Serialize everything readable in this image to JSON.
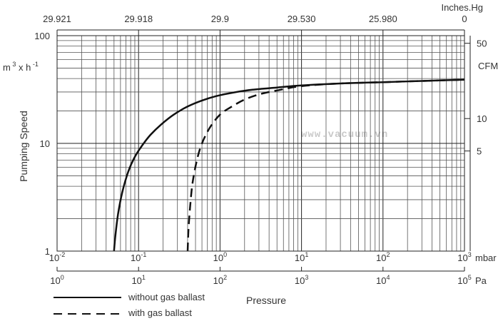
{
  "watermark": "www.vacuum.vn",
  "chart_data": {
    "type": "line",
    "xscale": "log",
    "yscale": "log",
    "xlim": [
      0.01,
      1000
    ],
    "ylim": [
      1,
      100
    ],
    "grid": true,
    "ylabel": "Pumping Speed",
    "yunit": "m 3 x h -1",
    "xlabel": "Pressure",
    "bottom_axis_mbar": {
      "unit": "mbar",
      "ticks": [
        {
          "value": 0.01,
          "base": "10",
          "exp": "-2"
        },
        {
          "value": 0.1,
          "base": "10",
          "exp": "-1"
        },
        {
          "value": 1,
          "base": "10",
          "exp": "0"
        },
        {
          "value": 10,
          "base": "10",
          "exp": "1"
        },
        {
          "value": 100,
          "base": "10",
          "exp": "2"
        },
        {
          "value": 1000,
          "base": "10",
          "exp": "3"
        }
      ]
    },
    "bottom_axis_pa": {
      "unit": "Pa",
      "ticks": [
        {
          "value": 0.01,
          "base": "10",
          "exp": "0"
        },
        {
          "value": 0.1,
          "base": "10",
          "exp": "1"
        },
        {
          "value": 1,
          "base": "10",
          "exp": "2"
        },
        {
          "value": 10,
          "base": "10",
          "exp": "3"
        },
        {
          "value": 100,
          "base": "10",
          "exp": "4"
        },
        {
          "value": 1000,
          "base": "10",
          "exp": "5"
        }
      ]
    },
    "top_axis": {
      "unit": "Inches.Hg",
      "ticks": [
        {
          "value": 0.01,
          "label": "29.921"
        },
        {
          "value": 0.1,
          "label": "29.918"
        },
        {
          "value": 1,
          "label": "29.9"
        },
        {
          "value": 10,
          "label": "29.530"
        },
        {
          "value": 100,
          "label": "25.980"
        },
        {
          "value": 1000,
          "label": "0"
        }
      ]
    },
    "left_axis": {
      "ticks": [
        {
          "value": 1,
          "label": "1"
        },
        {
          "value": 10,
          "label": "10"
        },
        {
          "value": 100,
          "label": "100"
        }
      ]
    },
    "right_axis": {
      "unit": "CFM",
      "ticks": [
        {
          "value": 8.5,
          "label": "5"
        },
        {
          "value": 17,
          "label": "10"
        },
        {
          "value": 85,
          "label": "50"
        }
      ]
    },
    "series": [
      {
        "name": "without gas ballast",
        "style": "solid",
        "x": [
          0.05,
          0.052,
          0.056,
          0.063,
          0.075,
          0.09,
          0.11,
          0.14,
          0.19,
          0.27,
          0.4,
          0.6,
          0.9,
          1.4,
          2.5,
          5,
          10,
          30,
          100,
          300,
          1000
        ],
        "y": [
          1,
          1.4,
          2.2,
          3.5,
          5.5,
          7.5,
          9.5,
          12,
          15,
          18.5,
          22,
          25,
          27.5,
          29.5,
          31.5,
          33,
          34.5,
          36,
          37,
          38,
          39
        ]
      },
      {
        "name": "with gas ballast",
        "style": "dashed",
        "x": [
          0.4,
          0.41,
          0.43,
          0.46,
          0.52,
          0.6,
          0.75,
          1.0,
          1.4,
          2,
          3,
          5,
          10,
          30,
          100,
          300,
          1000
        ],
        "y": [
          1,
          1.6,
          2.6,
          4.3,
          7,
          10,
          14,
          18.5,
          22,
          25.5,
          28.5,
          31,
          34,
          36,
          37,
          38,
          39
        ]
      }
    ]
  }
}
